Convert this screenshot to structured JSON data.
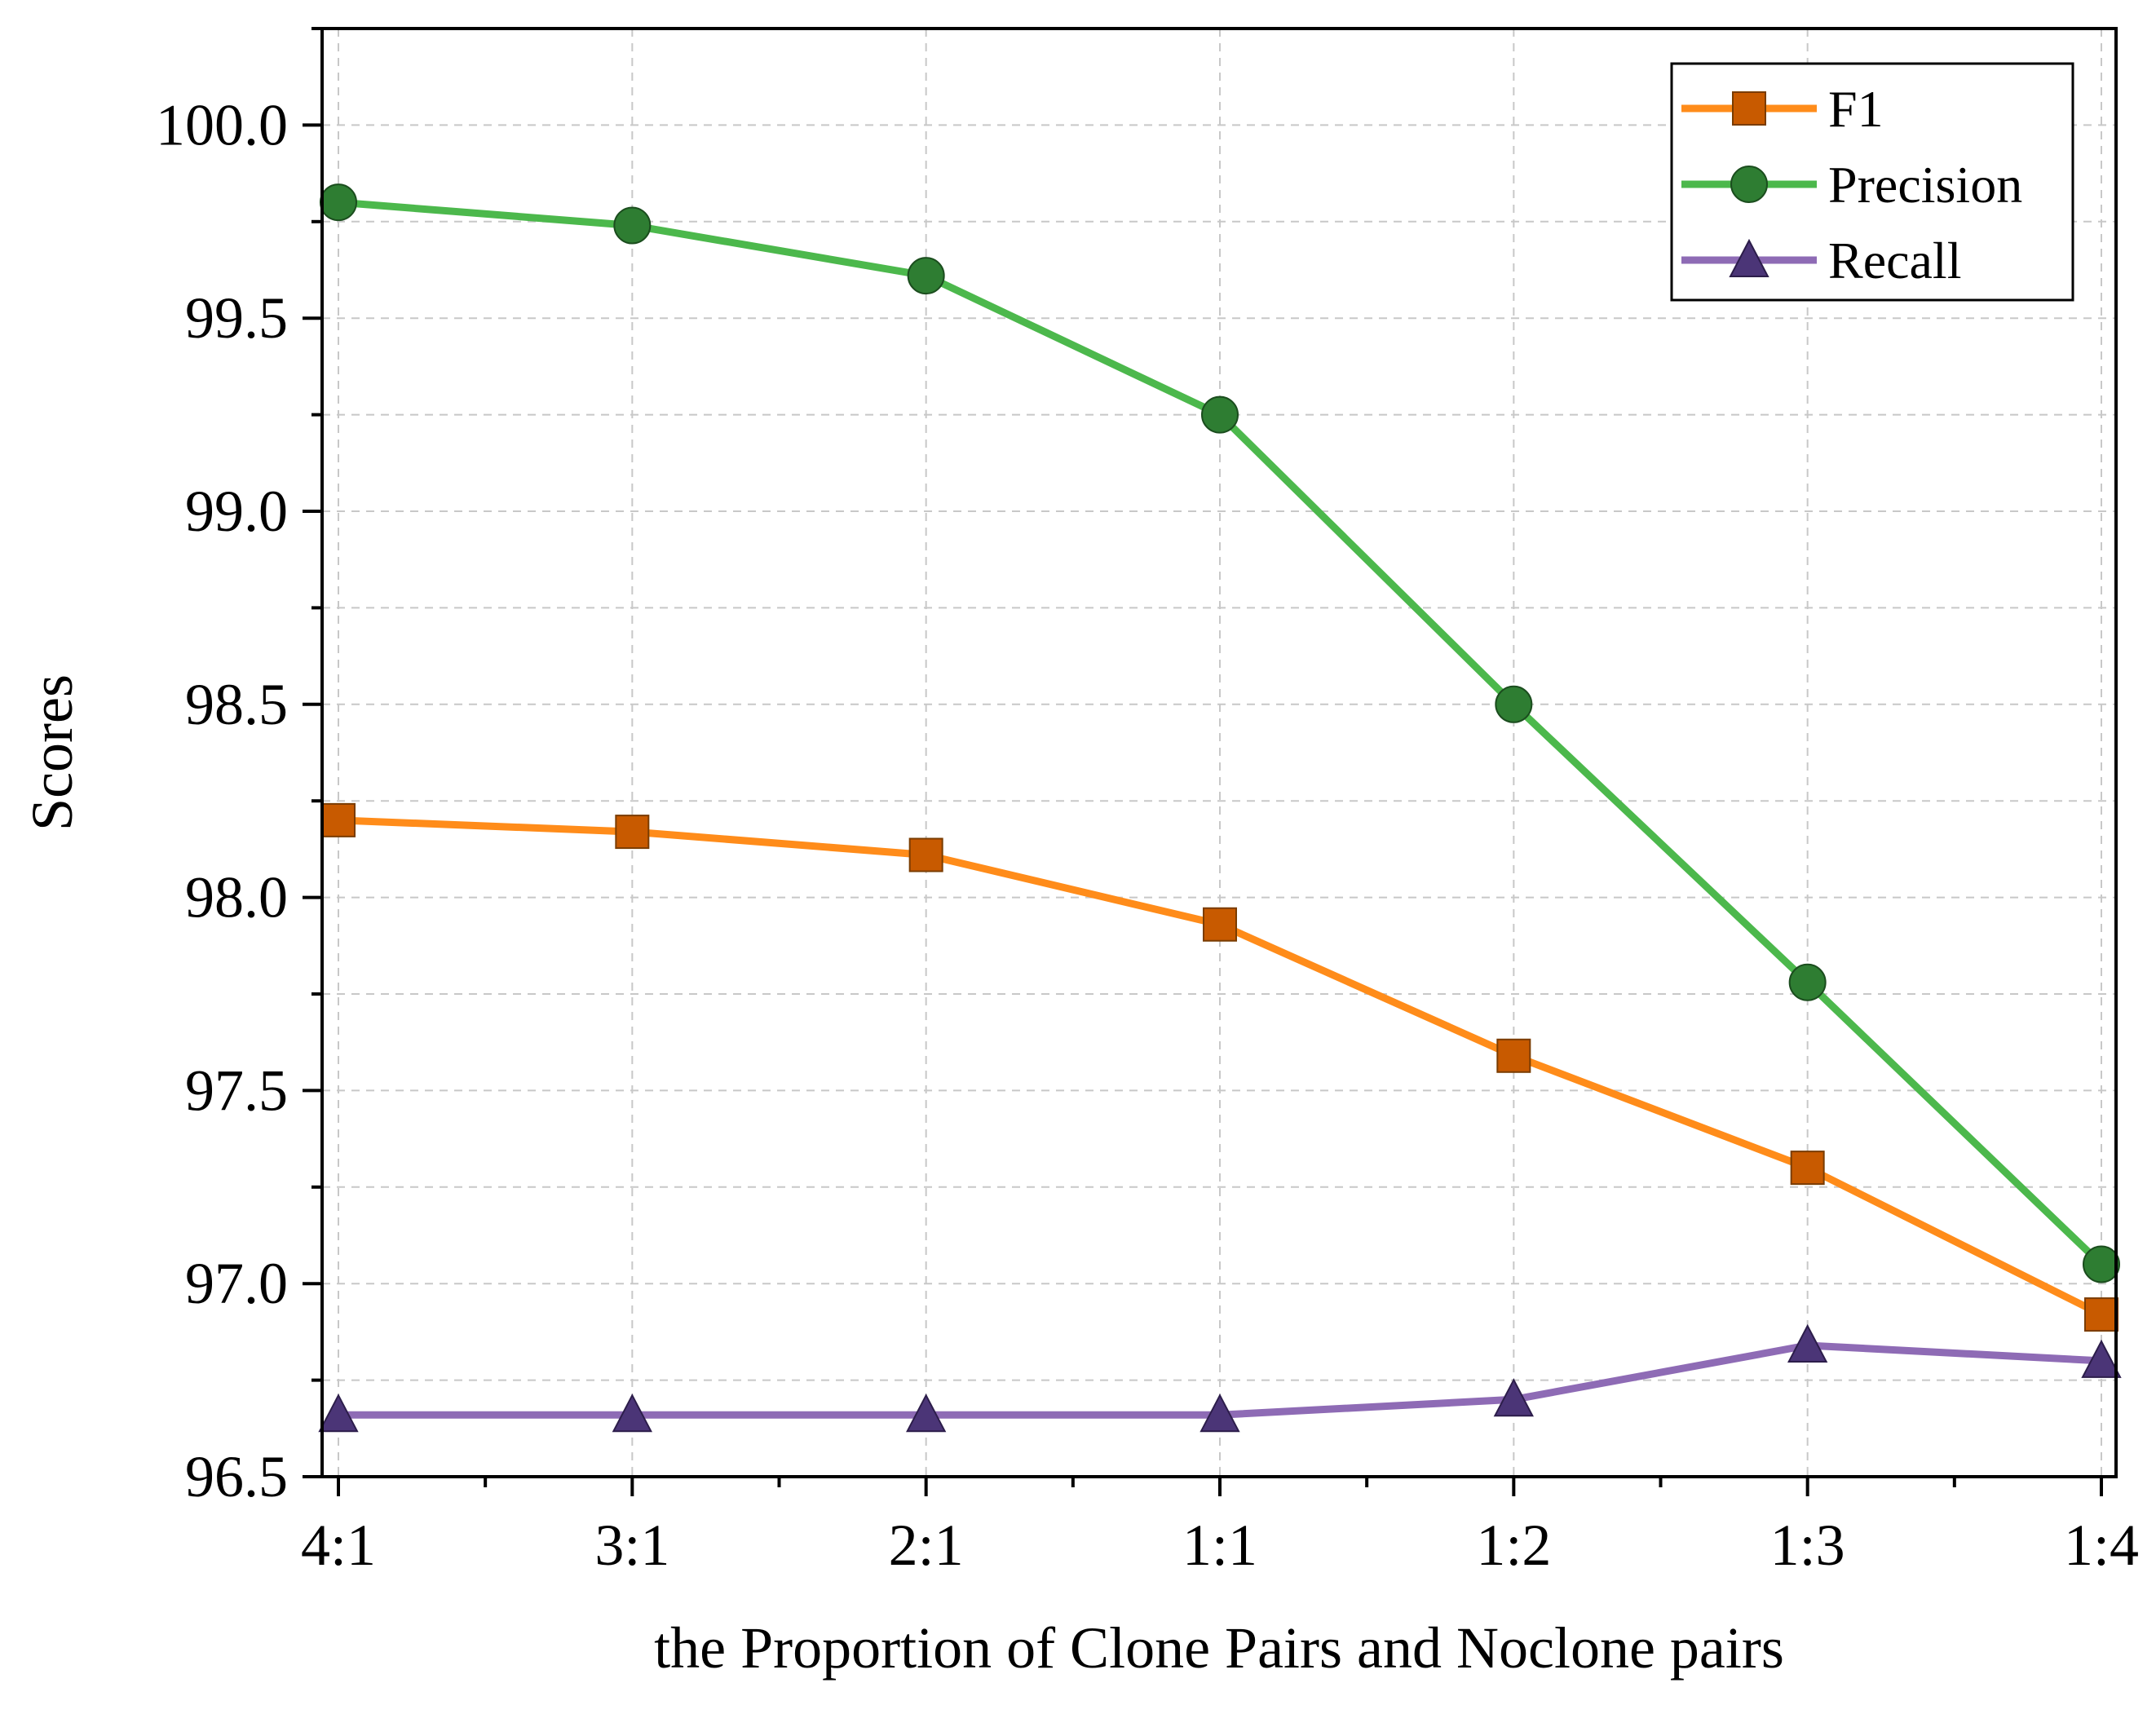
{
  "chart_data": {
    "type": "line",
    "title": "",
    "xlabel": "the Proportion of Clone Pairs and Noclone pairs",
    "ylabel": "Scores",
    "categories": [
      "4:1",
      "3:1",
      "2:1",
      "1:1",
      "1:2",
      "1:3",
      "1:4"
    ],
    "ylim": [
      96.5,
      100.25
    ],
    "yticks": [
      "96.5",
      "97.0",
      "97.5",
      "98.0",
      "98.5",
      "99.0",
      "99.5",
      "100.0"
    ],
    "grid": true,
    "legend_position": "top-right",
    "series": [
      {
        "name": "F1",
        "marker": "square",
        "color": "#ff8c1a",
        "marker_color": "#c85a00",
        "values": [
          98.2,
          98.17,
          98.11,
          97.93,
          97.59,
          97.3,
          96.92
        ]
      },
      {
        "name": "Precision",
        "marker": "circle",
        "color": "#4cb84c",
        "marker_color": "#2e7d32",
        "values": [
          99.8,
          99.74,
          99.61,
          99.25,
          98.5,
          97.78,
          97.05
        ]
      },
      {
        "name": "Recall",
        "marker": "triangle",
        "color": "#8e6bb5",
        "marker_color": "#4b3577",
        "values": [
          96.66,
          96.66,
          96.66,
          96.66,
          96.7,
          96.84,
          96.8
        ]
      }
    ]
  }
}
